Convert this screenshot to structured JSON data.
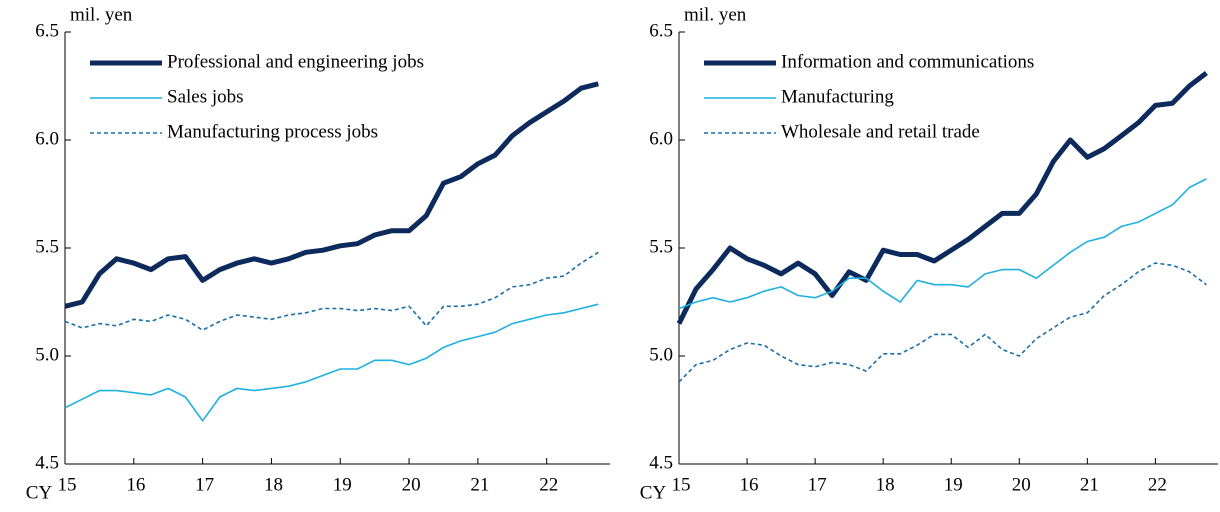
{
  "chart_data": [
    {
      "type": "line",
      "ylabel": "mil. yen",
      "xlabel": "CY",
      "x": [
        15,
        15.25,
        15.5,
        15.75,
        16,
        16.25,
        16.5,
        16.75,
        17,
        17.25,
        17.5,
        17.75,
        18,
        18.25,
        18.5,
        18.75,
        19,
        19.25,
        19.5,
        19.75,
        20,
        20.25,
        20.5,
        20.75,
        21,
        21.25,
        21.5,
        21.75,
        22,
        22.25,
        22.5,
        22.75
      ],
      "series": [
        {
          "name": "Professional and engineering jobs",
          "color": "#0d2a5c",
          "linewidth": 5,
          "linestyle": "solid",
          "values": [
            5.23,
            5.25,
            5.38,
            5.45,
            5.43,
            5.4,
            5.45,
            5.46,
            5.35,
            5.4,
            5.43,
            5.45,
            5.43,
            5.45,
            5.48,
            5.49,
            5.51,
            5.52,
            5.56,
            5.58,
            5.58,
            5.65,
            5.8,
            5.83,
            5.89,
            5.93,
            6.02,
            6.08,
            6.13,
            6.18,
            6.24,
            6.26
          ]
        },
        {
          "name": "Sales jobs",
          "color": "#1fb0e0",
          "linewidth": 1.6,
          "linestyle": "solid",
          "values": [
            4.76,
            4.8,
            4.84,
            4.84,
            4.83,
            4.82,
            4.85,
            4.81,
            4.7,
            4.81,
            4.85,
            4.84,
            4.85,
            4.86,
            4.88,
            4.91,
            4.94,
            4.94,
            4.98,
            4.98,
            4.96,
            4.99,
            5.04,
            5.07,
            5.09,
            5.11,
            5.15,
            5.17,
            5.19,
            5.2,
            5.22,
            5.24
          ]
        },
        {
          "name": "Manufacturing process jobs",
          "color": "#1a6fa8",
          "linewidth": 1.6,
          "linestyle": "dashed",
          "values": [
            5.16,
            5.13,
            5.15,
            5.14,
            5.17,
            5.16,
            5.19,
            5.17,
            5.12,
            5.16,
            5.19,
            5.18,
            5.17,
            5.19,
            5.2,
            5.22,
            5.22,
            5.21,
            5.22,
            5.21,
            5.23,
            5.14,
            5.23,
            5.23,
            5.24,
            5.27,
            5.32,
            5.33,
            5.36,
            5.37,
            5.43,
            5.48
          ]
        }
      ],
      "xlim": [
        15,
        22.92
      ],
      "ylim": [
        4.5,
        6.5
      ],
      "xticks": [
        15,
        16,
        17,
        18,
        19,
        20,
        21,
        22
      ],
      "yticks": [
        4.5,
        {
          "value": 5,
          "label": "5.0"
        },
        5.5,
        {
          "value": 6,
          "label": "6.0"
        },
        6.5
      ]
    },
    {
      "type": "line",
      "ylabel": "mil. yen",
      "xlabel": "CY",
      "x": [
        15,
        15.25,
        15.5,
        15.75,
        16,
        16.25,
        16.5,
        16.75,
        17,
        17.25,
        17.5,
        17.75,
        18,
        18.25,
        18.5,
        18.75,
        19,
        19.25,
        19.5,
        19.75,
        20,
        20.25,
        20.5,
        20.75,
        21,
        21.25,
        21.5,
        21.75,
        22,
        22.25,
        22.5,
        22.75
      ],
      "series": [
        {
          "name": "Information and communications",
          "color": "#0d2a5c",
          "linewidth": 5,
          "linestyle": "solid",
          "values": [
            5.15,
            5.31,
            5.4,
            5.5,
            5.45,
            5.42,
            5.38,
            5.43,
            5.38,
            5.28,
            5.39,
            5.35,
            5.49,
            5.47,
            5.47,
            5.44,
            5.49,
            5.54,
            5.6,
            5.66,
            5.66,
            5.75,
            5.9,
            6.0,
            5.92,
            5.96,
            6.02,
            6.08,
            6.16,
            6.17,
            6.25,
            6.31
          ]
        },
        {
          "name": "Manufacturing",
          "color": "#1fb0e0",
          "linewidth": 1.6,
          "linestyle": "solid",
          "values": [
            5.22,
            5.25,
            5.27,
            5.25,
            5.27,
            5.3,
            5.32,
            5.28,
            5.27,
            5.3,
            5.36,
            5.36,
            5.3,
            5.25,
            5.35,
            5.33,
            5.33,
            5.32,
            5.38,
            5.4,
            5.4,
            5.36,
            5.42,
            5.48,
            5.53,
            5.55,
            5.6,
            5.62,
            5.66,
            5.7,
            5.78,
            5.82
          ]
        },
        {
          "name": "Wholesale and retail trade",
          "color": "#1a6fa8",
          "linewidth": 1.6,
          "linestyle": "dashed",
          "values": [
            4.88,
            4.96,
            4.98,
            5.03,
            5.06,
            5.05,
            5.0,
            4.96,
            4.95,
            4.97,
            4.96,
            4.93,
            5.01,
            5.01,
            5.05,
            5.1,
            5.1,
            5.04,
            5.1,
            5.03,
            5.0,
            5.08,
            5.13,
            5.18,
            5.2,
            5.28,
            5.33,
            5.39,
            5.43,
            5.42,
            5.39,
            5.33
          ]
        }
      ],
      "xlim": [
        15,
        22.92
      ],
      "ylim": [
        4.5,
        6.5
      ],
      "xticks": [
        15,
        16,
        17,
        18,
        19,
        20,
        21,
        22
      ],
      "yticks": [
        4.5,
        {
          "value": 5,
          "label": "5.0"
        },
        5.5,
        {
          "value": 6,
          "label": "6.0"
        },
        6.5
      ]
    }
  ]
}
